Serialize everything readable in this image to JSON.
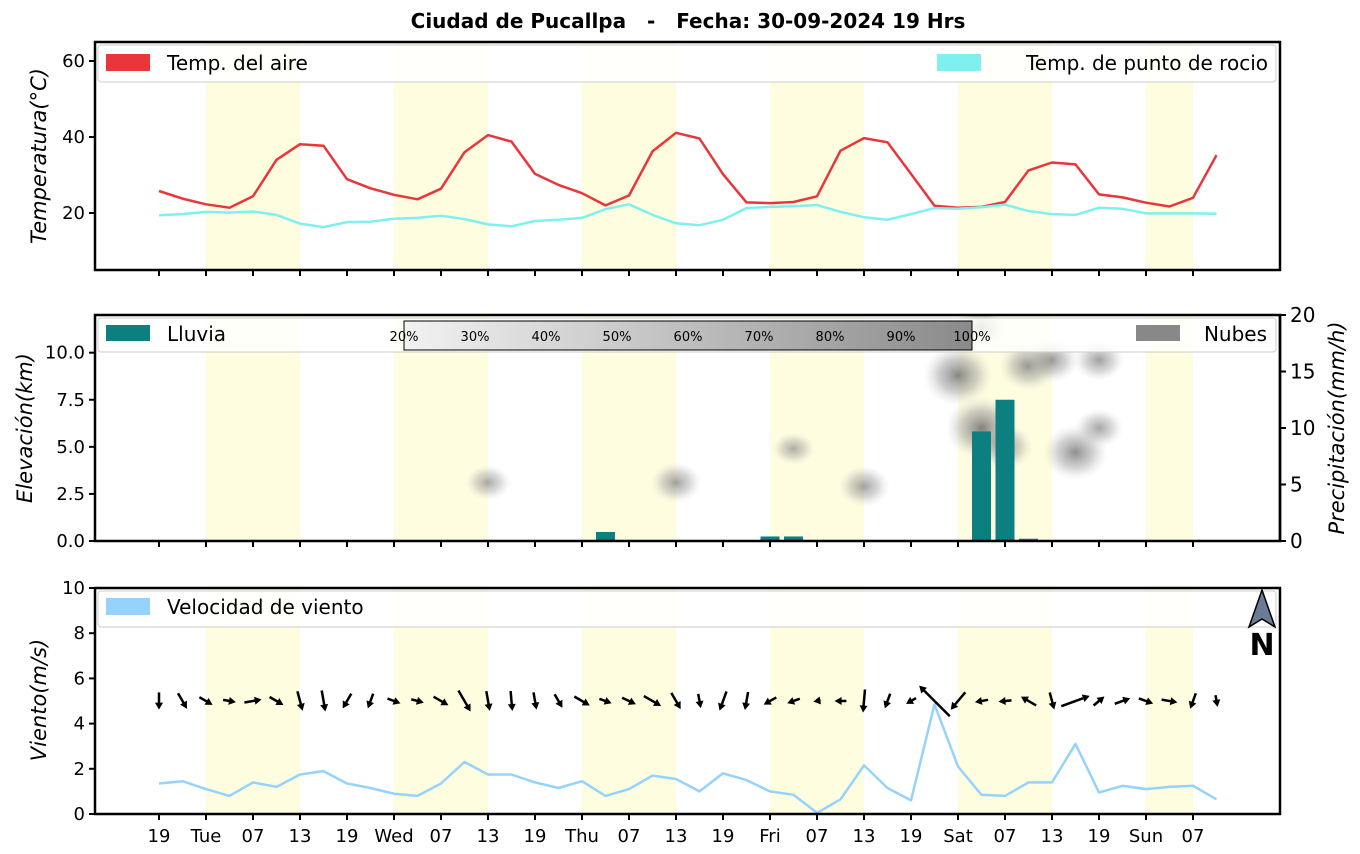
{
  "chart_data": {
    "type": "meteogram",
    "title": "Ciudad de Pucallpa   -   Fecha: 30-09-2024 19 Hrs",
    "time_steps": 46,
    "step_hours": 3,
    "x_tick_labels": [
      "19",
      "Tue",
      "07",
      "13",
      "19",
      "Wed",
      "07",
      "13",
      "19",
      "Thu",
      "07",
      "13",
      "19",
      "Fri",
      "07",
      "13",
      "19",
      "Sat",
      "07",
      "13",
      "19",
      "Sun",
      "07"
    ],
    "day_periods": [
      [
        2,
        6
      ],
      [
        10,
        14
      ],
      [
        18,
        22
      ],
      [
        26,
        30
      ],
      [
        34,
        38
      ],
      [
        42,
        44
      ]
    ],
    "temperature_panel": {
      "ylabel": "Temperatura(°C)",
      "ylim": [
        5,
        65
      ],
      "yticks": [
        "20",
        "40",
        "60"
      ],
      "legend": [
        "Temp. del aire",
        "Temp. de punto de rocio"
      ],
      "series": [
        {
          "name": "Temp. del aire",
          "color": "#e8363a",
          "values": [
            25.8,
            23.8,
            22.3,
            21.4,
            24.4,
            34,
            38.1,
            37.7,
            28.9,
            26.5,
            24.8,
            23.6,
            26.4,
            36,
            40.5,
            38.8,
            30.3,
            27.4,
            25.2,
            22,
            24.6,
            36.2,
            41.1,
            39.6,
            30.2,
            22.8,
            22.6,
            22.9,
            24.4,
            36.4,
            39.7,
            38.6,
            30.3,
            21.9,
            21.4,
            21.6,
            22.9,
            31.2,
            33.3,
            32.8,
            24.9,
            24.1,
            22.7,
            21.7,
            24,
            35.2
          ]
        },
        {
          "name": "Temp. de punto de rocio",
          "color": "#7ff0f0",
          "values": [
            19.4,
            19.7,
            20.3,
            20.1,
            20.4,
            19.5,
            17.2,
            16.3,
            17.6,
            17.7,
            18.5,
            18.7,
            19.3,
            18.4,
            17,
            16.5,
            17.9,
            18.2,
            18.7,
            21,
            22.3,
            19.5,
            17.3,
            16.8,
            18.2,
            21.3,
            21.6,
            21.8,
            22.1,
            20.3,
            18.9,
            18.2,
            19.7,
            21.3,
            21.1,
            21.5,
            22.2,
            20.5,
            19.7,
            19.5,
            21.4,
            21.1,
            19.9,
            19.9,
            19.9,
            19.8
          ]
        }
      ]
    },
    "rain_panel": {
      "ylabel": "Elevación(km)",
      "ylabel_right": "Precipitación(mm/h)",
      "ylim": [
        0,
        12
      ],
      "ylim_right": [
        0,
        20
      ],
      "yticks": [
        "0.0",
        "2.5",
        "5.0",
        "7.5",
        "10.0"
      ],
      "yticks_right": [
        "0",
        "5",
        "10",
        "15",
        "20"
      ],
      "legend": [
        "Lluvia",
        "Nubes"
      ],
      "rain_color": "#0c7f80",
      "cloud_color": "#888888",
      "cloud_cover_scale": [
        "20%",
        "30%",
        "40%",
        "50%",
        "60%",
        "70%",
        "80%",
        "90%",
        "100%"
      ],
      "rain_mm_h": [
        0,
        0,
        0,
        0,
        0,
        0,
        0,
        0,
        0,
        0,
        0,
        0,
        0,
        0,
        0,
        0,
        0,
        0,
        0,
        0.8,
        0,
        0,
        0,
        0,
        0,
        0,
        0.4,
        0.4,
        0,
        0,
        0,
        0,
        0,
        0,
        0,
        9.7,
        12.5,
        0.2,
        0,
        0,
        0,
        0,
        0,
        0,
        0,
        0
      ],
      "clouds": [
        {
          "t": 14,
          "km": 3.1,
          "intensity": 0.35
        },
        {
          "t": 22,
          "km": 3.1,
          "intensity": 0.45
        },
        {
          "t": 27,
          "km": 4.9,
          "intensity": 0.3
        },
        {
          "t": 30,
          "km": 2.9,
          "intensity": 0.45
        },
        {
          "t": 34,
          "km": 8.8,
          "intensity": 0.8
        },
        {
          "t": 35,
          "km": 6.0,
          "intensity": 0.85
        },
        {
          "t": 36,
          "km": 5.0,
          "intensity": 0.55
        },
        {
          "t": 37,
          "km": 9.3,
          "intensity": 0.6
        },
        {
          "t": 38,
          "km": 9.6,
          "intensity": 0.5
        },
        {
          "t": 39,
          "km": 4.7,
          "intensity": 0.7
        },
        {
          "t": 40,
          "km": 6.0,
          "intensity": 0.4
        },
        {
          "t": 40,
          "km": 9.6,
          "intensity": 0.45
        },
        {
          "t": 35,
          "km": 11.3,
          "intensity": 0.45
        }
      ]
    },
    "wind_panel": {
      "ylabel": "Viento(m/s)",
      "ylim": [
        0,
        10
      ],
      "yticks": [
        "0",
        "2",
        "4",
        "6",
        "8",
        "10"
      ],
      "legend": [
        "Velocidad de viento"
      ],
      "series_color": "#95d3fc",
      "speed": [
        1.35,
        1.45,
        1.1,
        0.8,
        1.4,
        1.2,
        1.75,
        1.9,
        1.35,
        1.15,
        0.9,
        0.8,
        1.35,
        2.3,
        1.75,
        1.75,
        1.4,
        1.15,
        1.45,
        0.8,
        1.1,
        1.7,
        1.55,
        1.0,
        1.8,
        1.5,
        1.0,
        0.85,
        0.05,
        0.65,
        2.15,
        1.15,
        0.6,
        4.85,
        2.1,
        0.85,
        0.8,
        1.4,
        1.4,
        3.1,
        0.95,
        1.25,
        1.1,
        1.2,
        1.25,
        0.65
      ],
      "direction_deg": [
        0,
        330,
        300,
        280,
        260,
        300,
        345,
        350,
        30,
        20,
        290,
        285,
        300,
        330,
        350,
        355,
        350,
        330,
        300,
        290,
        295,
        300,
        330,
        350,
        20,
        10,
        60,
        70,
        80,
        90,
        5,
        20,
        60,
        135,
        40,
        80,
        85,
        120,
        345,
        250,
        230,
        250,
        290,
        280,
        20,
        350
      ],
      "north_label": "N"
    }
  }
}
